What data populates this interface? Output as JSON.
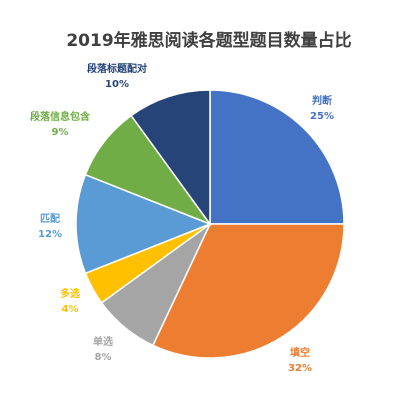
{
  "chart_data": {
    "type": "pie",
    "title": "2019年雅思阅读各题型题目数量占比",
    "slices": [
      {
        "name": "判断",
        "value": 25,
        "pct_label": "25%",
        "color": "#4472C4"
      },
      {
        "name": "填空",
        "value": 32,
        "pct_label": "32%",
        "color": "#ED7D31"
      },
      {
        "name": "单选",
        "value": 8,
        "pct_label": "8%",
        "color": "#A5A5A5"
      },
      {
        "name": "多选",
        "value": 4,
        "pct_label": "4%",
        "color": "#FFC000"
      },
      {
        "name": "匹配",
        "value": 12,
        "pct_label": "12%",
        "color": "#5B9BD5"
      },
      {
        "name": "段落信息包含",
        "value": 9,
        "pct_label": "9%",
        "color": "#70AD47"
      },
      {
        "name": "段落标题配对",
        "value": 10,
        "pct_label": "10%",
        "color": "#264478"
      }
    ],
    "label_colors": {
      "判断": "#4472C4",
      "填空": "#ED7D31",
      "单选": "#A5A5A5",
      "多选": "#FFC000",
      "匹配": "#5B9BD5",
      "段落信息包含": "#70AD47",
      "段落标题配对": "#264478"
    }
  }
}
